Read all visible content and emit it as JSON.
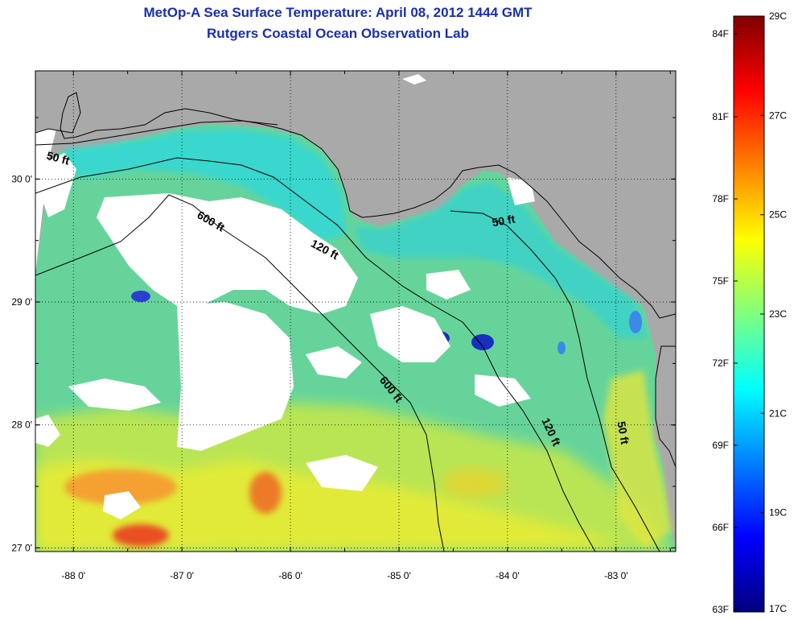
{
  "header": {
    "title": "MetOp-A Sea Surface Temperature:  April 08, 2012 1444 GMT",
    "subtitle": "Rutgers Coastal Ocean Observation Lab"
  },
  "map": {
    "lon_range": [
      -88.35,
      -82.45
    ],
    "lat_range": [
      26.97,
      30.88
    ],
    "lon_ticks": [
      -88,
      -87,
      -86,
      -85,
      -84,
      -83
    ],
    "lat_ticks": [
      27,
      28,
      29,
      30
    ],
    "lon_tick_labels": [
      "-88 0'",
      "-87 0'",
      "-86 0'",
      "-85 0'",
      "-84 0'",
      "-83 0'"
    ],
    "lat_tick_labels": [
      "27 0'",
      "28 0'",
      "29 0'",
      "30 0'"
    ],
    "land_color": "#aaaaaa",
    "cloud_color": "#ffffff",
    "grid": "dotted",
    "contour_labels": [
      {
        "text": "50 ft",
        "lon": -88.15,
        "lat": 30.14,
        "angle": 15
      },
      {
        "text": "600 ft",
        "lon": -86.75,
        "lat": 29.63,
        "angle": 30
      },
      {
        "text": "120 ft",
        "lon": -85.7,
        "lat": 29.4,
        "angle": 28
      },
      {
        "text": "50 ft",
        "lon": -84.03,
        "lat": 29.63,
        "angle": -10
      },
      {
        "text": "600 ft",
        "lon": -85.1,
        "lat": 28.27,
        "angle": 52
      },
      {
        "text": "120 ft",
        "lon": -83.63,
        "lat": 27.93,
        "angle": 65
      },
      {
        "text": "50 ft",
        "lon": -82.97,
        "lat": 27.93,
        "angle": 80
      }
    ]
  },
  "colorbar": {
    "celsius_labels": [
      "29C",
      "27C",
      "25C",
      "23C",
      "21C",
      "19C",
      "17C"
    ],
    "fahrenheit_labels": [
      "84F",
      "81F",
      "78F",
      "75F",
      "72F",
      "69F",
      "66F",
      "63F"
    ],
    "colors": [
      "#7f0000",
      "#ff0000",
      "#ff7f00",
      "#ffff00",
      "#7fff7f",
      "#00ffff",
      "#007fff",
      "#0000ff",
      "#00007f"
    ]
  }
}
